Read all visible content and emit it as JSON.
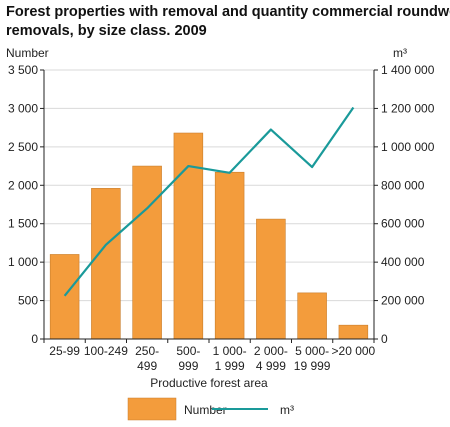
{
  "chart_data": {
    "type": "bar",
    "title_line1": "Forest properties with removal and quantity commercial roundwood",
    "title_line2": "removals, by size class. 2009",
    "xlabel": "Productive forest area",
    "ylabel_left": "Number",
    "ylabel_right": "m³",
    "categories": [
      [
        "25-99"
      ],
      [
        "100-249"
      ],
      [
        "250-",
        "499"
      ],
      [
        "500-",
        "999"
      ],
      [
        "1 000-",
        "1 999"
      ],
      [
        "2 000-",
        "4 999"
      ],
      [
        "5 000-",
        "19 999"
      ],
      [
        ">20 000"
      ]
    ],
    "left_axis": {
      "min": 0,
      "max": 3500,
      "ticks": [
        0,
        500,
        1000,
        1500,
        2000,
        2500,
        3000,
        3500
      ],
      "tick_labels": [
        "0",
        "500",
        "1 000",
        "1 500",
        "2 000",
        "2 500",
        "3 000",
        "3 500"
      ]
    },
    "right_axis": {
      "min": 0,
      "max": 1400000,
      "ticks": [
        0,
        200000,
        400000,
        600000,
        800000,
        1000000,
        1200000,
        1400000
      ],
      "tick_labels": [
        "0",
        "200 000",
        "400 000",
        "600 000",
        "800 000",
        "1 000 000",
        "1 200 000",
        "1 400 000"
      ]
    },
    "series": [
      {
        "name": "Number",
        "kind": "bar",
        "axis": "left",
        "color": "#f39c3c",
        "values": [
          1100,
          1960,
          2250,
          2680,
          2170,
          1560,
          600,
          180
        ]
      },
      {
        "name": "m³",
        "kind": "line",
        "axis": "right",
        "color": "#1a9a9a",
        "values": [
          225000,
          490000,
          680000,
          900000,
          865000,
          1090000,
          895000,
          1205000
        ]
      }
    ],
    "grid": true,
    "legend": "bottom"
  }
}
